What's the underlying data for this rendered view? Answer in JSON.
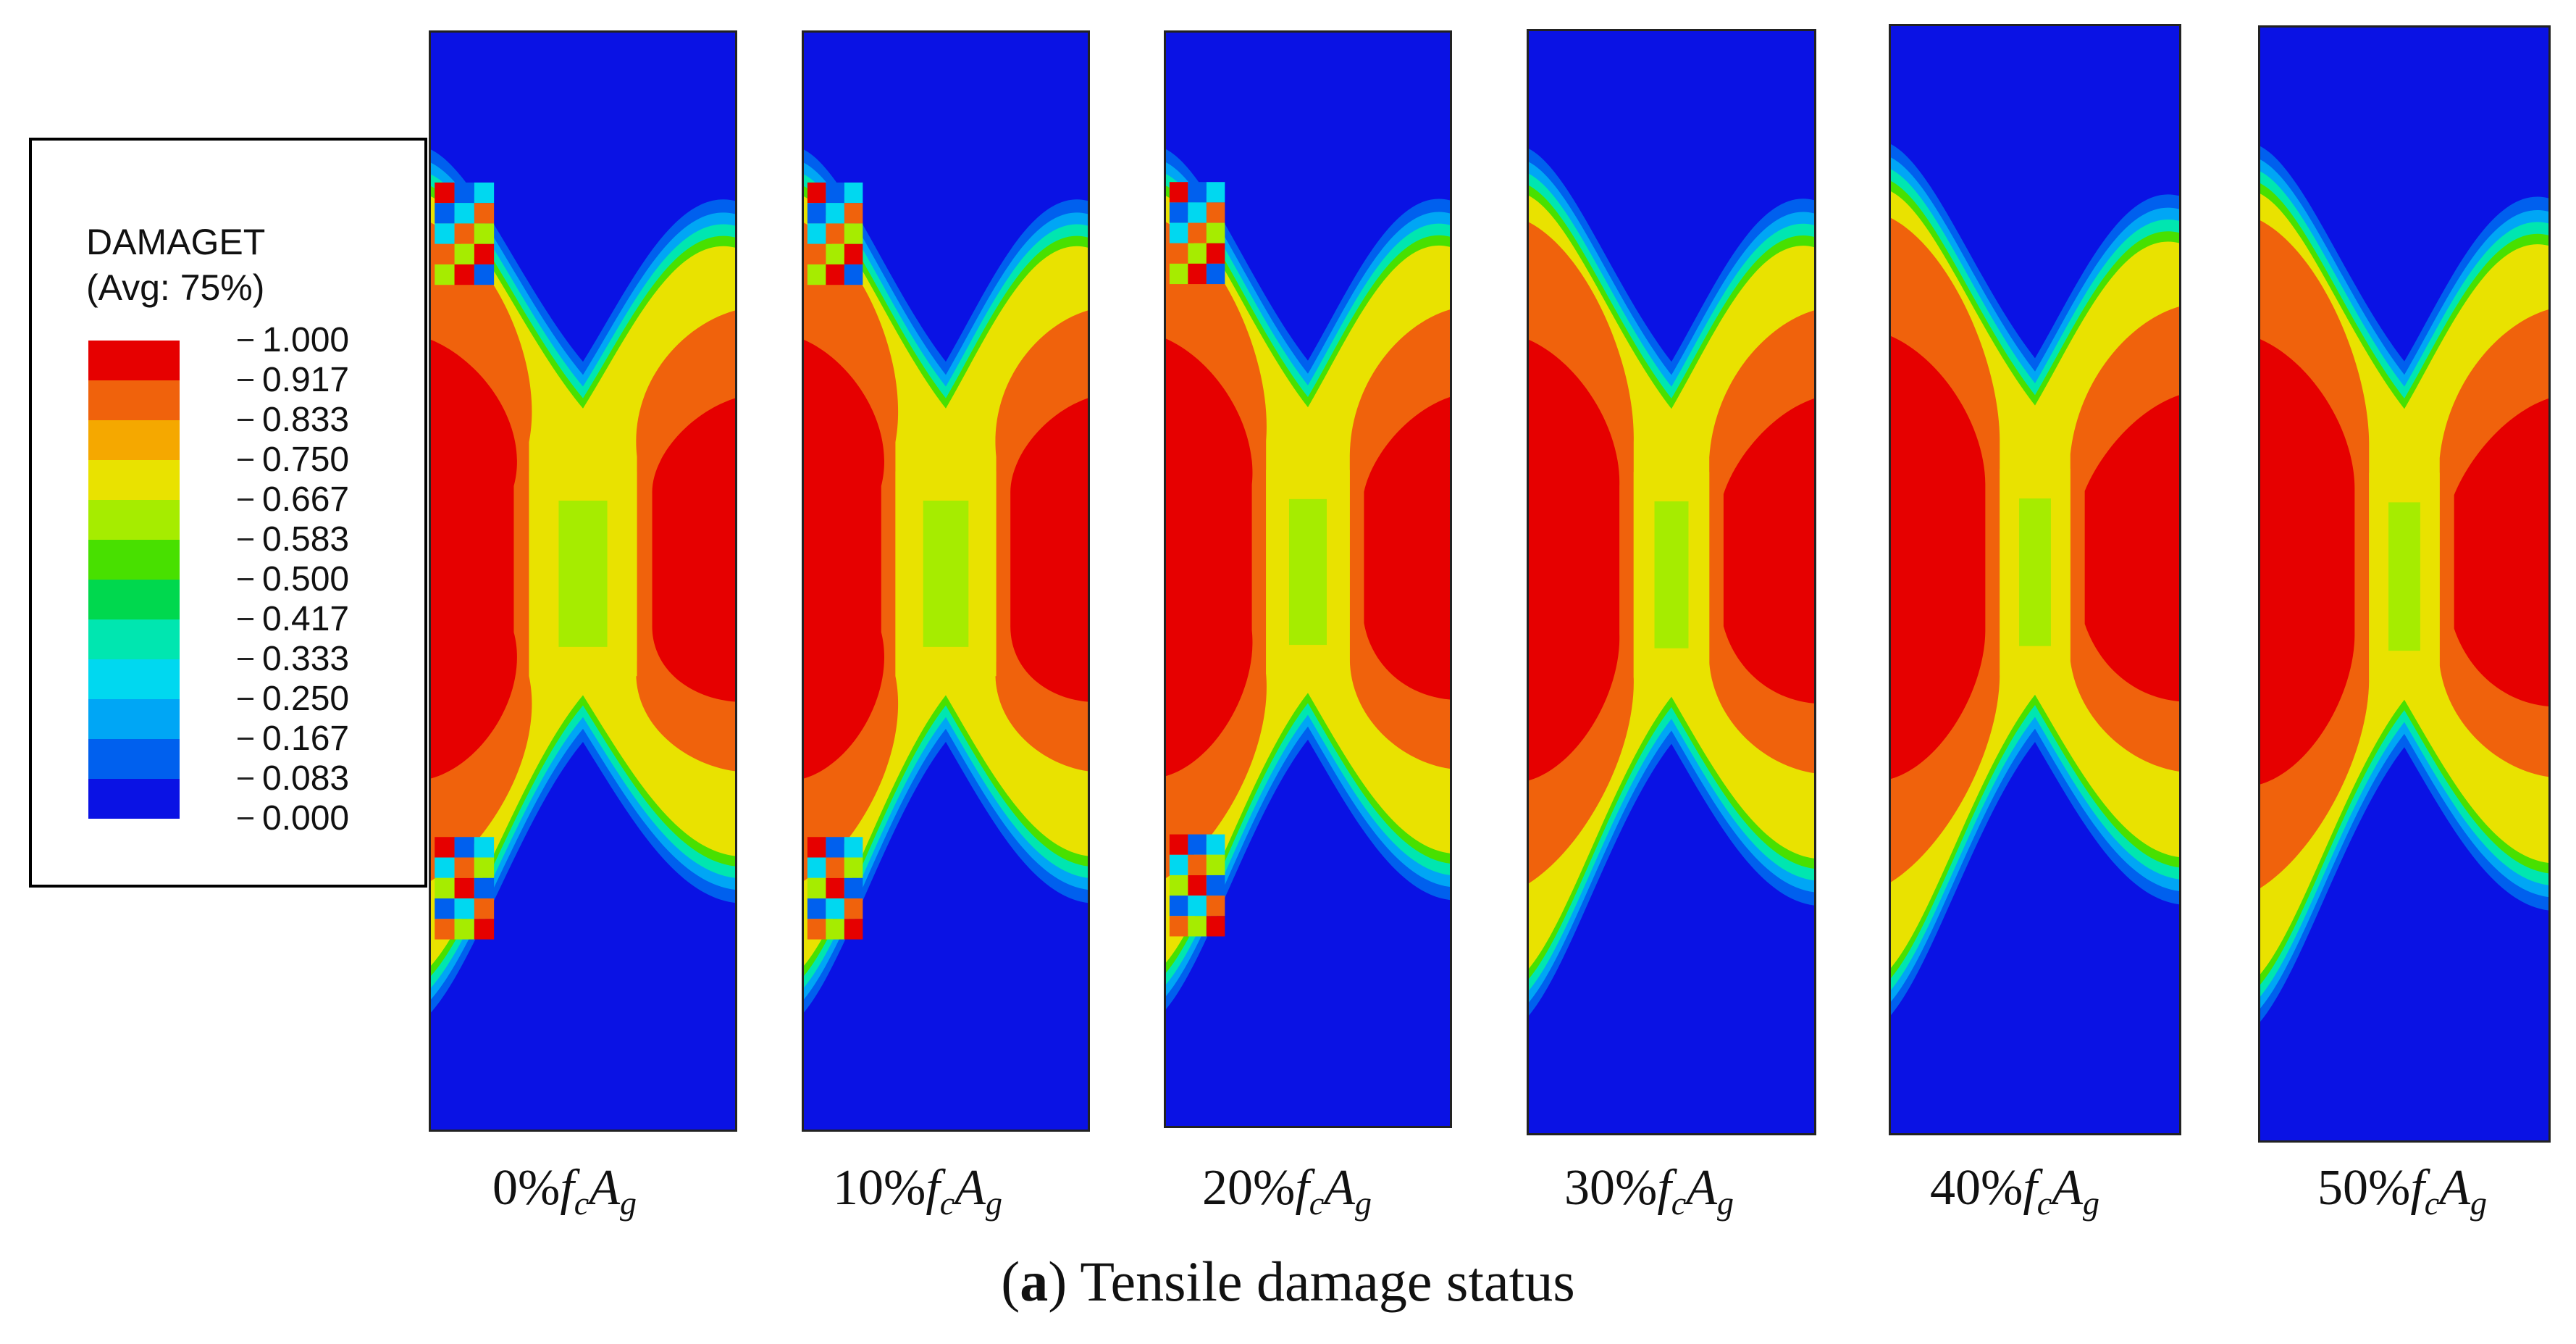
{
  "legend": {
    "title": "DAMAGET",
    "subtitle": "(Avg: 75%)",
    "levels": [
      {
        "value": "1.000",
        "color": "#e60000"
      },
      {
        "value": "0.917",
        "color": "#f0620c"
      },
      {
        "value": "0.833",
        "color": "#f5a800"
      },
      {
        "value": "0.750",
        "color": "#e9e200"
      },
      {
        "value": "0.667",
        "color": "#a6ec00"
      },
      {
        "value": "0.583",
        "color": "#48e000"
      },
      {
        "value": "0.500",
        "color": "#00d84e"
      },
      {
        "value": "0.417",
        "color": "#00e6b0"
      },
      {
        "value": "0.333",
        "color": "#00d8f0"
      },
      {
        "value": "0.250",
        "color": "#00a6f5"
      },
      {
        "value": "0.167",
        "color": "#0060ee"
      },
      {
        "value": "0.083",
        "color": "#0a12e4"
      },
      {
        "value": "0.000",
        "color": ""
      }
    ]
  },
  "panels": [
    {
      "label_prefix": "0%",
      "f": "f",
      "f_sub": "c",
      "a": "A",
      "a_sub": "g",
      "neck": 0.9
    },
    {
      "label_prefix": "10%",
      "f": "f",
      "f_sub": "c",
      "a": "A",
      "a_sub": "g",
      "neck": 0.9
    },
    {
      "label_prefix": "20%",
      "f": "f",
      "f_sub": "c",
      "a": "A",
      "a_sub": "g",
      "neck": 0.6
    },
    {
      "label_prefix": "30%",
      "f": "f",
      "f_sub": "c",
      "a": "A",
      "a_sub": "g",
      "neck": 0.45
    },
    {
      "label_prefix": "40%",
      "f": "f",
      "f_sub": "c",
      "a": "A",
      "a_sub": "g",
      "neck": 0.35
    },
    {
      "label_prefix": "50%",
      "f": "f",
      "f_sub": "c",
      "a": "A",
      "a_sub": "g",
      "neck": 0.35
    }
  ],
  "caption": {
    "open": "(",
    "letter": "a",
    "rest": ") Tensile damage status"
  }
}
